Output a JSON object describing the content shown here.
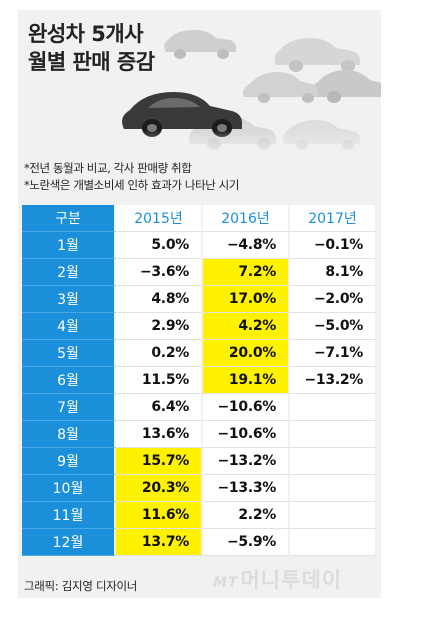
{
  "title": {
    "line1": "완성차 5개사",
    "line2": "월별 판매 증감"
  },
  "notes": [
    "*전년 동월과 비교, 각사 판매량 취합",
    "*노란색은 개별소비세 인하 효과가 나타난 시기"
  ],
  "table": {
    "headers": [
      "구분",
      "2015년",
      "2016년",
      "2017년"
    ],
    "rows": [
      {
        "month": "1월",
        "values": [
          "5.0%",
          "−4.8%",
          "−0.1%"
        ],
        "highlight": [
          false,
          false,
          false
        ]
      },
      {
        "month": "2월",
        "values": [
          "−3.6%",
          "7.2%",
          "8.1%"
        ],
        "highlight": [
          false,
          true,
          false
        ]
      },
      {
        "month": "3월",
        "values": [
          "4.8%",
          "17.0%",
          "−2.0%"
        ],
        "highlight": [
          false,
          true,
          false
        ]
      },
      {
        "month": "4월",
        "values": [
          "2.9%",
          "4.2%",
          "−5.0%"
        ],
        "highlight": [
          false,
          true,
          false
        ]
      },
      {
        "month": "5월",
        "values": [
          "0.2%",
          "20.0%",
          "−7.1%"
        ],
        "highlight": [
          false,
          true,
          false
        ]
      },
      {
        "month": "6월",
        "values": [
          "11.5%",
          "19.1%",
          "−13.2%"
        ],
        "highlight": [
          false,
          true,
          false
        ]
      },
      {
        "month": "7월",
        "values": [
          "6.4%",
          "−10.6%",
          ""
        ],
        "highlight": [
          false,
          false,
          false
        ]
      },
      {
        "month": "8월",
        "values": [
          "13.6%",
          "−10.6%",
          ""
        ],
        "highlight": [
          false,
          false,
          false
        ]
      },
      {
        "month": "9월",
        "values": [
          "15.7%",
          "−13.2%",
          ""
        ],
        "highlight": [
          true,
          false,
          false
        ]
      },
      {
        "month": "10월",
        "values": [
          "20.3%",
          "−13.3%",
          ""
        ],
        "highlight": [
          true,
          false,
          false
        ]
      },
      {
        "month": "11월",
        "values": [
          "11.6%",
          "2.2%",
          ""
        ],
        "highlight": [
          true,
          false,
          false
        ]
      },
      {
        "month": "12월",
        "values": [
          "13.7%",
          "−5.9%",
          ""
        ],
        "highlight": [
          true,
          false,
          false
        ]
      }
    ]
  },
  "credit": "그래픽: 김지영 디자이너",
  "watermark": {
    "prefix": "MT",
    "text": "머니투데이"
  },
  "colors": {
    "header_blue": "#1b8fd9",
    "highlight_yellow": "#fff200",
    "background": "#f1f1f1"
  }
}
